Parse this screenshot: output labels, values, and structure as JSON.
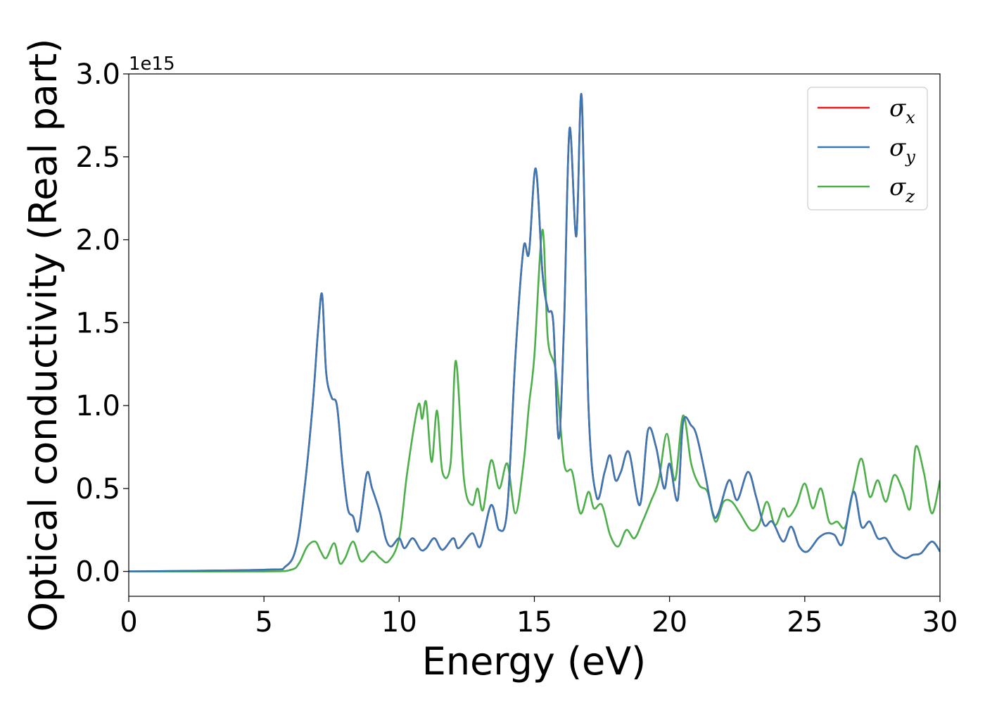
{
  "chart_data": {
    "type": "line",
    "title": "",
    "xlabel": "Energy (eV)",
    "ylabel": "Optical conductivity (Real part)",
    "y_offset_label": "1e15",
    "xlim": [
      0,
      30
    ],
    "ylim": [
      -0.15,
      3.0
    ],
    "xticks": [
      0,
      5,
      10,
      15,
      20,
      25,
      30
    ],
    "xtick_labels": [
      "0",
      "5",
      "10",
      "15",
      "20",
      "25",
      "30"
    ],
    "yticks": [
      0,
      0.5,
      1.0,
      1.5,
      2.0,
      2.5,
      3.0
    ],
    "ytick_labels": [
      "0.0",
      "0.5",
      "1.0",
      "1.5",
      "2.0",
      "2.5",
      "3.0"
    ],
    "grid": false,
    "legend_position": "top-right",
    "series": [
      {
        "name": "σx",
        "symbol": "σ",
        "subscript": "x",
        "color": "#e41a1c",
        "x": [
          0,
          5,
          5.8,
          6.2,
          6.5,
          6.8,
          7.0,
          7.15,
          7.3,
          7.5,
          7.7,
          7.9,
          8.1,
          8.3,
          8.5,
          8.8,
          9.0,
          9.3,
          9.5,
          9.7,
          10.0,
          10.2,
          10.5,
          10.8,
          11.0,
          11.3,
          11.6,
          12.0,
          12.2,
          12.7,
          13.0,
          13.4,
          13.7,
          14.0,
          14.3,
          14.6,
          14.8,
          15.05,
          15.3,
          15.5,
          15.7,
          15.9,
          16.1,
          16.3,
          16.55,
          16.75,
          17.0,
          17.3,
          17.6,
          17.8,
          18.0,
          18.2,
          18.5,
          18.9,
          19.2,
          19.5,
          19.8,
          20.0,
          20.3,
          20.5,
          20.8,
          21.0,
          21.3,
          21.6,
          21.8,
          22.2,
          22.5,
          22.9,
          23.2,
          23.5,
          23.8,
          24.2,
          24.5,
          24.8,
          25.1,
          25.5,
          25.8,
          26.1,
          26.4,
          26.8,
          27.1,
          27.4,
          27.7,
          28.0,
          28.3,
          28.7,
          29.0,
          29.3,
          29.7,
          30.0
        ],
        "y": [
          0.0,
          0.01,
          0.03,
          0.15,
          0.5,
          1.0,
          1.45,
          1.67,
          1.2,
          1.05,
          1.0,
          0.65,
          0.38,
          0.33,
          0.25,
          0.59,
          0.5,
          0.35,
          0.2,
          0.15,
          0.2,
          0.14,
          0.2,
          0.13,
          0.14,
          0.2,
          0.13,
          0.2,
          0.14,
          0.23,
          0.15,
          0.4,
          0.25,
          0.38,
          1.3,
          1.95,
          1.92,
          2.43,
          1.8,
          1.58,
          1.5,
          0.8,
          1.5,
          2.67,
          2.02,
          2.86,
          1.0,
          0.45,
          0.6,
          0.7,
          0.55,
          0.6,
          0.72,
          0.4,
          0.85,
          0.75,
          0.5,
          0.65,
          0.43,
          0.9,
          0.88,
          0.82,
          0.6,
          0.35,
          0.35,
          0.55,
          0.43,
          0.6,
          0.45,
          0.28,
          0.3,
          0.18,
          0.27,
          0.15,
          0.12,
          0.2,
          0.23,
          0.22,
          0.17,
          0.48,
          0.27,
          0.3,
          0.2,
          0.2,
          0.12,
          0.08,
          0.1,
          0.11,
          0.18,
          0.12
        ]
      },
      {
        "name": "σy",
        "symbol": "σ",
        "subscript": "y",
        "color": "#3a78b5",
        "x": [
          0,
          5,
          5.8,
          6.2,
          6.5,
          6.8,
          7.0,
          7.15,
          7.3,
          7.5,
          7.7,
          7.9,
          8.1,
          8.3,
          8.5,
          8.8,
          9.0,
          9.3,
          9.5,
          9.7,
          10.0,
          10.2,
          10.5,
          10.8,
          11.0,
          11.3,
          11.6,
          12.0,
          12.2,
          12.7,
          13.0,
          13.4,
          13.7,
          14.0,
          14.3,
          14.6,
          14.8,
          15.05,
          15.3,
          15.5,
          15.7,
          15.9,
          16.1,
          16.3,
          16.55,
          16.75,
          17.0,
          17.3,
          17.6,
          17.8,
          18.0,
          18.2,
          18.5,
          18.9,
          19.2,
          19.5,
          19.8,
          20.0,
          20.3,
          20.5,
          20.8,
          21.0,
          21.3,
          21.6,
          21.8,
          22.2,
          22.5,
          22.9,
          23.2,
          23.5,
          23.8,
          24.2,
          24.5,
          24.8,
          25.1,
          25.5,
          25.8,
          26.1,
          26.4,
          26.8,
          27.1,
          27.4,
          27.7,
          28.0,
          28.3,
          28.7,
          29.0,
          29.3,
          29.7,
          30.0
        ],
        "y": [
          0.0,
          0.01,
          0.03,
          0.15,
          0.5,
          1.0,
          1.45,
          1.67,
          1.2,
          1.05,
          1.0,
          0.65,
          0.38,
          0.33,
          0.25,
          0.59,
          0.5,
          0.35,
          0.2,
          0.15,
          0.2,
          0.14,
          0.2,
          0.13,
          0.14,
          0.2,
          0.13,
          0.2,
          0.14,
          0.23,
          0.15,
          0.4,
          0.25,
          0.38,
          1.3,
          1.95,
          1.92,
          2.43,
          1.8,
          1.58,
          1.5,
          0.8,
          1.5,
          2.67,
          2.02,
          2.86,
          1.0,
          0.45,
          0.6,
          0.7,
          0.55,
          0.6,
          0.72,
          0.4,
          0.85,
          0.75,
          0.5,
          0.65,
          0.43,
          0.9,
          0.88,
          0.82,
          0.6,
          0.35,
          0.35,
          0.55,
          0.43,
          0.6,
          0.45,
          0.28,
          0.3,
          0.18,
          0.27,
          0.15,
          0.12,
          0.2,
          0.23,
          0.22,
          0.17,
          0.48,
          0.27,
          0.3,
          0.2,
          0.2,
          0.12,
          0.08,
          0.1,
          0.11,
          0.18,
          0.12
        ]
      },
      {
        "name": "σz",
        "symbol": "σ",
        "subscript": "z",
        "color": "#4daf4a",
        "x": [
          0,
          5,
          6.0,
          6.3,
          6.6,
          6.9,
          7.1,
          7.3,
          7.6,
          7.8,
          8.0,
          8.3,
          8.6,
          9.0,
          9.3,
          9.6,
          10.0,
          10.3,
          10.7,
          10.85,
          11.0,
          11.2,
          11.4,
          11.6,
          11.9,
          12.1,
          12.4,
          12.7,
          12.9,
          13.1,
          13.4,
          13.7,
          14.0,
          14.3,
          14.6,
          14.8,
          15.0,
          15.3,
          15.5,
          15.8,
          16.1,
          16.4,
          16.7,
          17.0,
          17.2,
          17.5,
          17.8,
          18.1,
          18.4,
          18.7,
          19.0,
          19.3,
          19.6,
          19.9,
          20.2,
          20.5,
          20.8,
          21.1,
          21.4,
          21.7,
          22.0,
          22.3,
          22.6,
          23.0,
          23.3,
          23.6,
          23.9,
          24.2,
          24.4,
          24.7,
          25.0,
          25.3,
          25.6,
          25.9,
          26.2,
          26.5,
          26.8,
          27.1,
          27.4,
          27.7,
          28.0,
          28.3,
          28.6,
          28.9,
          29.1,
          29.4,
          29.7,
          30.0
        ],
        "y": [
          0.0,
          0.0,
          0.01,
          0.05,
          0.15,
          0.18,
          0.12,
          0.08,
          0.17,
          0.05,
          0.08,
          0.18,
          0.06,
          0.12,
          0.08,
          0.06,
          0.2,
          0.6,
          1.0,
          0.92,
          1.02,
          0.66,
          0.97,
          0.6,
          0.65,
          1.27,
          0.55,
          0.4,
          0.5,
          0.37,
          0.67,
          0.5,
          0.65,
          0.35,
          0.65,
          1.0,
          1.3,
          2.06,
          1.4,
          1.2,
          0.65,
          0.6,
          0.35,
          0.48,
          0.38,
          0.4,
          0.22,
          0.15,
          0.25,
          0.2,
          0.3,
          0.42,
          0.55,
          0.83,
          0.55,
          0.94,
          0.65,
          0.52,
          0.48,
          0.3,
          0.42,
          0.42,
          0.35,
          0.25,
          0.28,
          0.42,
          0.28,
          0.38,
          0.33,
          0.4,
          0.53,
          0.38,
          0.5,
          0.3,
          0.3,
          0.27,
          0.5,
          0.68,
          0.45,
          0.55,
          0.42,
          0.58,
          0.5,
          0.38,
          0.75,
          0.6,
          0.35,
          0.55
        ]
      }
    ]
  }
}
